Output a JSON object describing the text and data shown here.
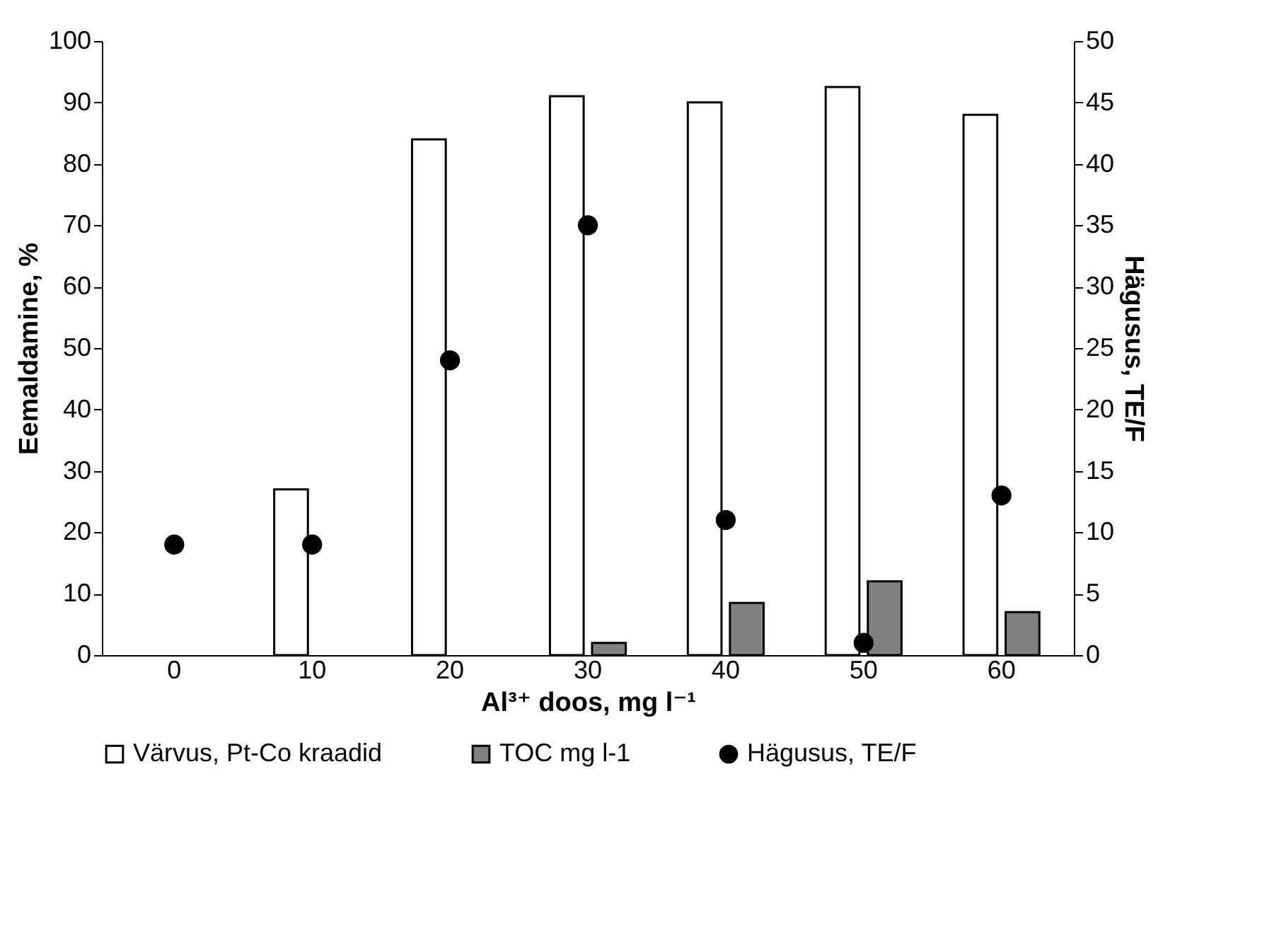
{
  "chart_data": {
    "type": "bar",
    "xlabel": "Al³⁺ doos, mg l⁻¹",
    "ylabel": "Eemaldamine, %",
    "y2label": "Hägusus, TE/F",
    "categories": [
      "0",
      "10",
      "20",
      "30",
      "40",
      "50",
      "60"
    ],
    "series": [
      {
        "name": "Värvus, Pt-Co kraadid",
        "color": "#ffffff",
        "values": [
          null,
          27,
          84,
          91,
          90,
          92.5,
          88
        ]
      },
      {
        "name": "TOC mg l-1",
        "color": "#808080",
        "values": [
          null,
          null,
          null,
          2,
          8.5,
          12,
          7
        ]
      },
      {
        "name": "Hägusus, TE/F",
        "type": "scatter",
        "axis": "y2",
        "color": "#000000",
        "marker": "circle",
        "values": [
          9,
          9,
          24,
          35,
          11,
          1,
          13
        ]
      }
    ],
    "ylim": [
      0,
      100
    ],
    "yticks": [
      0,
      10,
      20,
      30,
      40,
      50,
      60,
      70,
      80,
      90,
      100
    ],
    "y2lim": [
      0,
      50
    ],
    "y2ticks": [
      0,
      5,
      10,
      15,
      20,
      25,
      30,
      35,
      40,
      45,
      50
    ],
    "grid": false,
    "legend": "bottom"
  }
}
